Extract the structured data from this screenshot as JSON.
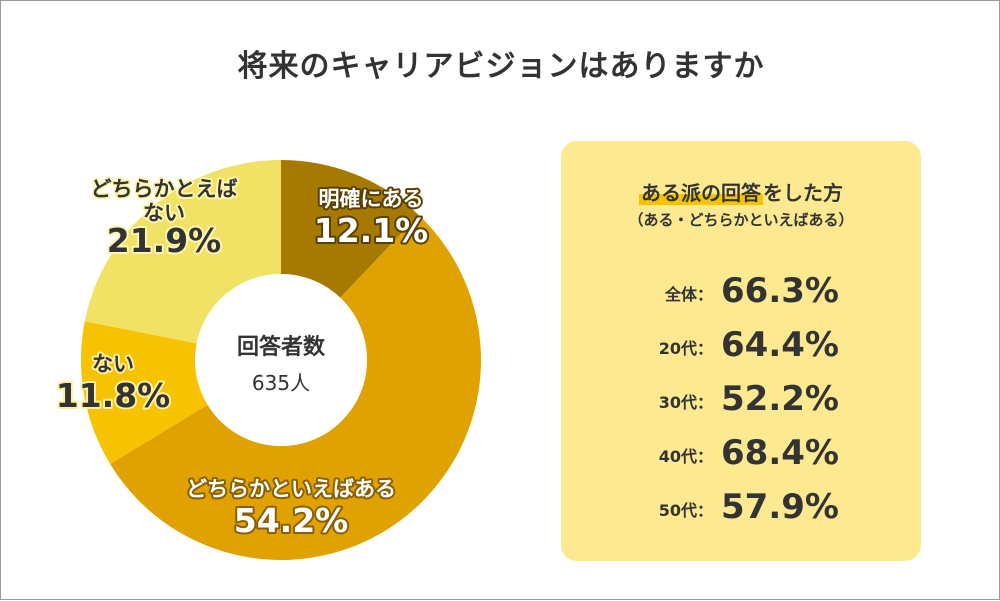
{
  "title": "将来のキャリアビジョンはありますか",
  "chart_data": {
    "type": "pie",
    "variant": "donut",
    "title": "将来のキャリアビジョンはありますか",
    "center_label": "回答者数",
    "center_value": "635人",
    "slices": [
      {
        "label": "明確にある",
        "value": 12.1,
        "display": "12.1%",
        "color": "#a67900",
        "text_color": "#ffffff",
        "halo": "#5a4000"
      },
      {
        "label": "どちらかといえばある",
        "value": 54.2,
        "display": "54.2%",
        "color": "#e0a200",
        "text_color": "#ffffff",
        "halo": "#8a5f00"
      },
      {
        "label": "ない",
        "value": 11.8,
        "display": "11.8%",
        "color": "#f7c200",
        "text_color": "#333333",
        "halo": "#fff0a0"
      },
      {
        "label": "どちらかといえばない",
        "value": 21.9,
        "display": "21.9%",
        "color": "#f1e265",
        "text_color": "#333333",
        "halo": "#fff6b0"
      }
    ]
  },
  "panel": {
    "title_highlight": "ある派の回答",
    "title_rest": "をした方",
    "subtitle": "（ある・どちらかといえばある）",
    "rows": [
      {
        "label": "全体：",
        "value": "66.3%"
      },
      {
        "label": "20代：",
        "value": "64.4%"
      },
      {
        "label": "30代：",
        "value": "52.2%"
      },
      {
        "label": "40代：",
        "value": "68.4%"
      },
      {
        "label": "50代：",
        "value": "57.9%"
      }
    ]
  }
}
